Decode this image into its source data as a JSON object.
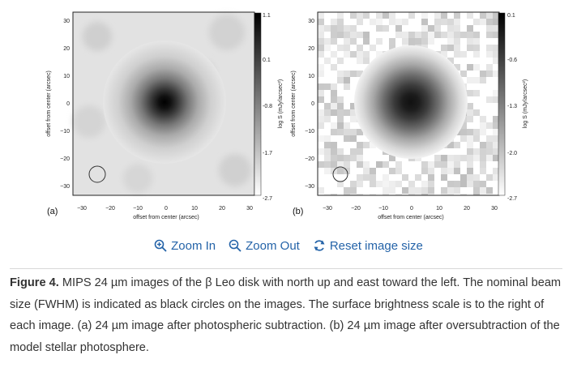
{
  "figure": {
    "panels": [
      {
        "label": "(a)",
        "ylabel": "offset from center (arcsec)",
        "xlabel": "offset from center (arcsec)",
        "x_ticks": [
          "−30",
          "−20",
          "−10",
          "0",
          "10",
          "20",
          "30"
        ],
        "y_ticks": [
          "30",
          "20",
          "10",
          "0",
          "−10",
          "−20",
          "−30"
        ],
        "colorbar_ticks": [
          "1.1",
          "0.1",
          "-0.8",
          "-1.7",
          "-2.7"
        ],
        "colorbar_label": "log S (mJy/arcsec²)",
        "style": "smooth"
      },
      {
        "label": "(b)",
        "ylabel": "offset from center (arcsec)",
        "xlabel": "offset from center (arcsec)",
        "x_ticks": [
          "−30",
          "−20",
          "−10",
          "0",
          "10",
          "20",
          "30"
        ],
        "y_ticks": [
          "30",
          "20",
          "10",
          "0",
          "−10",
          "−20",
          "−30"
        ],
        "colorbar_ticks": [
          "0.1",
          "-0.6",
          "-1.3",
          "-2.0",
          "-2.7"
        ],
        "colorbar_label": "log S (mJy/arcsec²)",
        "style": "noisy"
      }
    ]
  },
  "toolbar": {
    "zoom_in_label": "Zoom In",
    "zoom_out_label": "Zoom Out",
    "reset_label": "Reset image size",
    "link_color": "#2463a8"
  },
  "caption": {
    "lead": "Figure 4.",
    "text": " MIPS 24 µm images of the β Leo disk with north up and east toward the left. The nominal beam size (FWHM) is indicated as black circles on the images. The surface brightness scale is to the right of each image. (a) 24 µm image after photospheric subtraction. (b) 24 µm image after oversubtraction of the model stellar photosphere."
  }
}
